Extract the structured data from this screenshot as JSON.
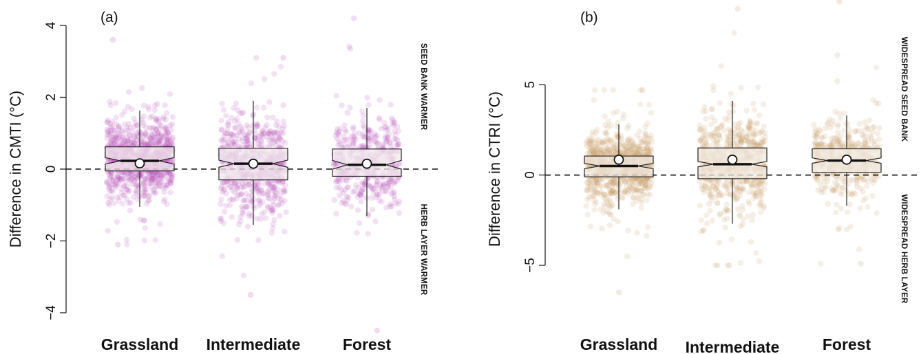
{
  "chart_data": [
    {
      "type": "boxplot-jitter",
      "panel_label": "(a)",
      "ylabel": "Difference in CMTI (°C)",
      "ylim": [
        -4,
        4
      ],
      "yticks": [
        -4,
        -2,
        0,
        2,
        4
      ],
      "ytick_labels": [
        "−4",
        "−2",
        "0",
        "2",
        "4"
      ],
      "reference_line": 0,
      "categories": [
        "Grassland",
        "Intermediate",
        "Forest"
      ],
      "point_color": "#b44cb4",
      "box_fill": "#f1e9ec",
      "upper_annotation": "SEED BANK WARMER",
      "lower_annotation": "HERB LAYER WARMER",
      "boxes": [
        {
          "name": "Grassland",
          "q1": -0.05,
          "median": 0.23,
          "q3": 0.62,
          "whisker_low": -1.05,
          "whisker_high": 1.63,
          "mean": 0.16,
          "notch": [
            0.14,
            0.32
          ],
          "jitter_range": [
            -2.1,
            3.6
          ],
          "n_points": 900
        },
        {
          "name": "Intermediate",
          "q1": -0.3,
          "median": 0.15,
          "q3": 0.58,
          "whisker_low": -1.55,
          "whisker_high": 1.9,
          "mean": 0.15,
          "notch": [
            0.05,
            0.25
          ],
          "jitter_range": [
            -3.5,
            3.1
          ],
          "n_points": 650
        },
        {
          "name": "Forest",
          "q1": -0.2,
          "median": 0.12,
          "q3": 0.56,
          "whisker_low": -1.3,
          "whisker_high": 1.7,
          "mean": 0.15,
          "notch": [
            0.0,
            0.24
          ],
          "jitter_range": [
            -4.5,
            4.2
          ],
          "n_points": 450
        }
      ]
    },
    {
      "type": "boxplot-jitter",
      "panel_label": "(b)",
      "ylabel": "Difference in CTRI (°C)",
      "ylim": [
        -8.5,
        9.5
      ],
      "yticks": [
        -5,
        0,
        5
      ],
      "ytick_labels": [
        "−5",
        "0",
        "5"
      ],
      "reference_line": 0,
      "categories": [
        "Grassland",
        "Intermediate",
        "Forest"
      ],
      "point_color": "#c49a66",
      "box_fill": "#f2ebe3",
      "upper_annotation": "WIDESPREAD SEED BANK",
      "lower_annotation": "WIDESPREAD HERB LAYER",
      "boxes": [
        {
          "name": "Grassland",
          "q1": -0.1,
          "median": 0.5,
          "q3": 1.05,
          "whisker_low": -1.9,
          "whisker_high": 2.8,
          "mean": 0.85,
          "notch": [
            0.35,
            0.65
          ],
          "jitter_range": [
            -6.5,
            4.7
          ],
          "n_points": 900
        },
        {
          "name": "Intermediate",
          "q1": -0.2,
          "median": 0.6,
          "q3": 1.5,
          "whisker_low": -2.7,
          "whisker_high": 4.1,
          "mean": 0.85,
          "notch": [
            0.45,
            0.75
          ],
          "jitter_range": [
            -5.0,
            9.2
          ],
          "n_points": 650
        },
        {
          "name": "Forest",
          "q1": 0.15,
          "median": 0.8,
          "q3": 1.45,
          "whisker_low": -1.7,
          "whisker_high": 3.3,
          "mean": 0.85,
          "notch": [
            0.65,
            0.95
          ],
          "jitter_range": [
            -4.9,
            9.6
          ],
          "n_points": 450
        }
      ]
    }
  ]
}
